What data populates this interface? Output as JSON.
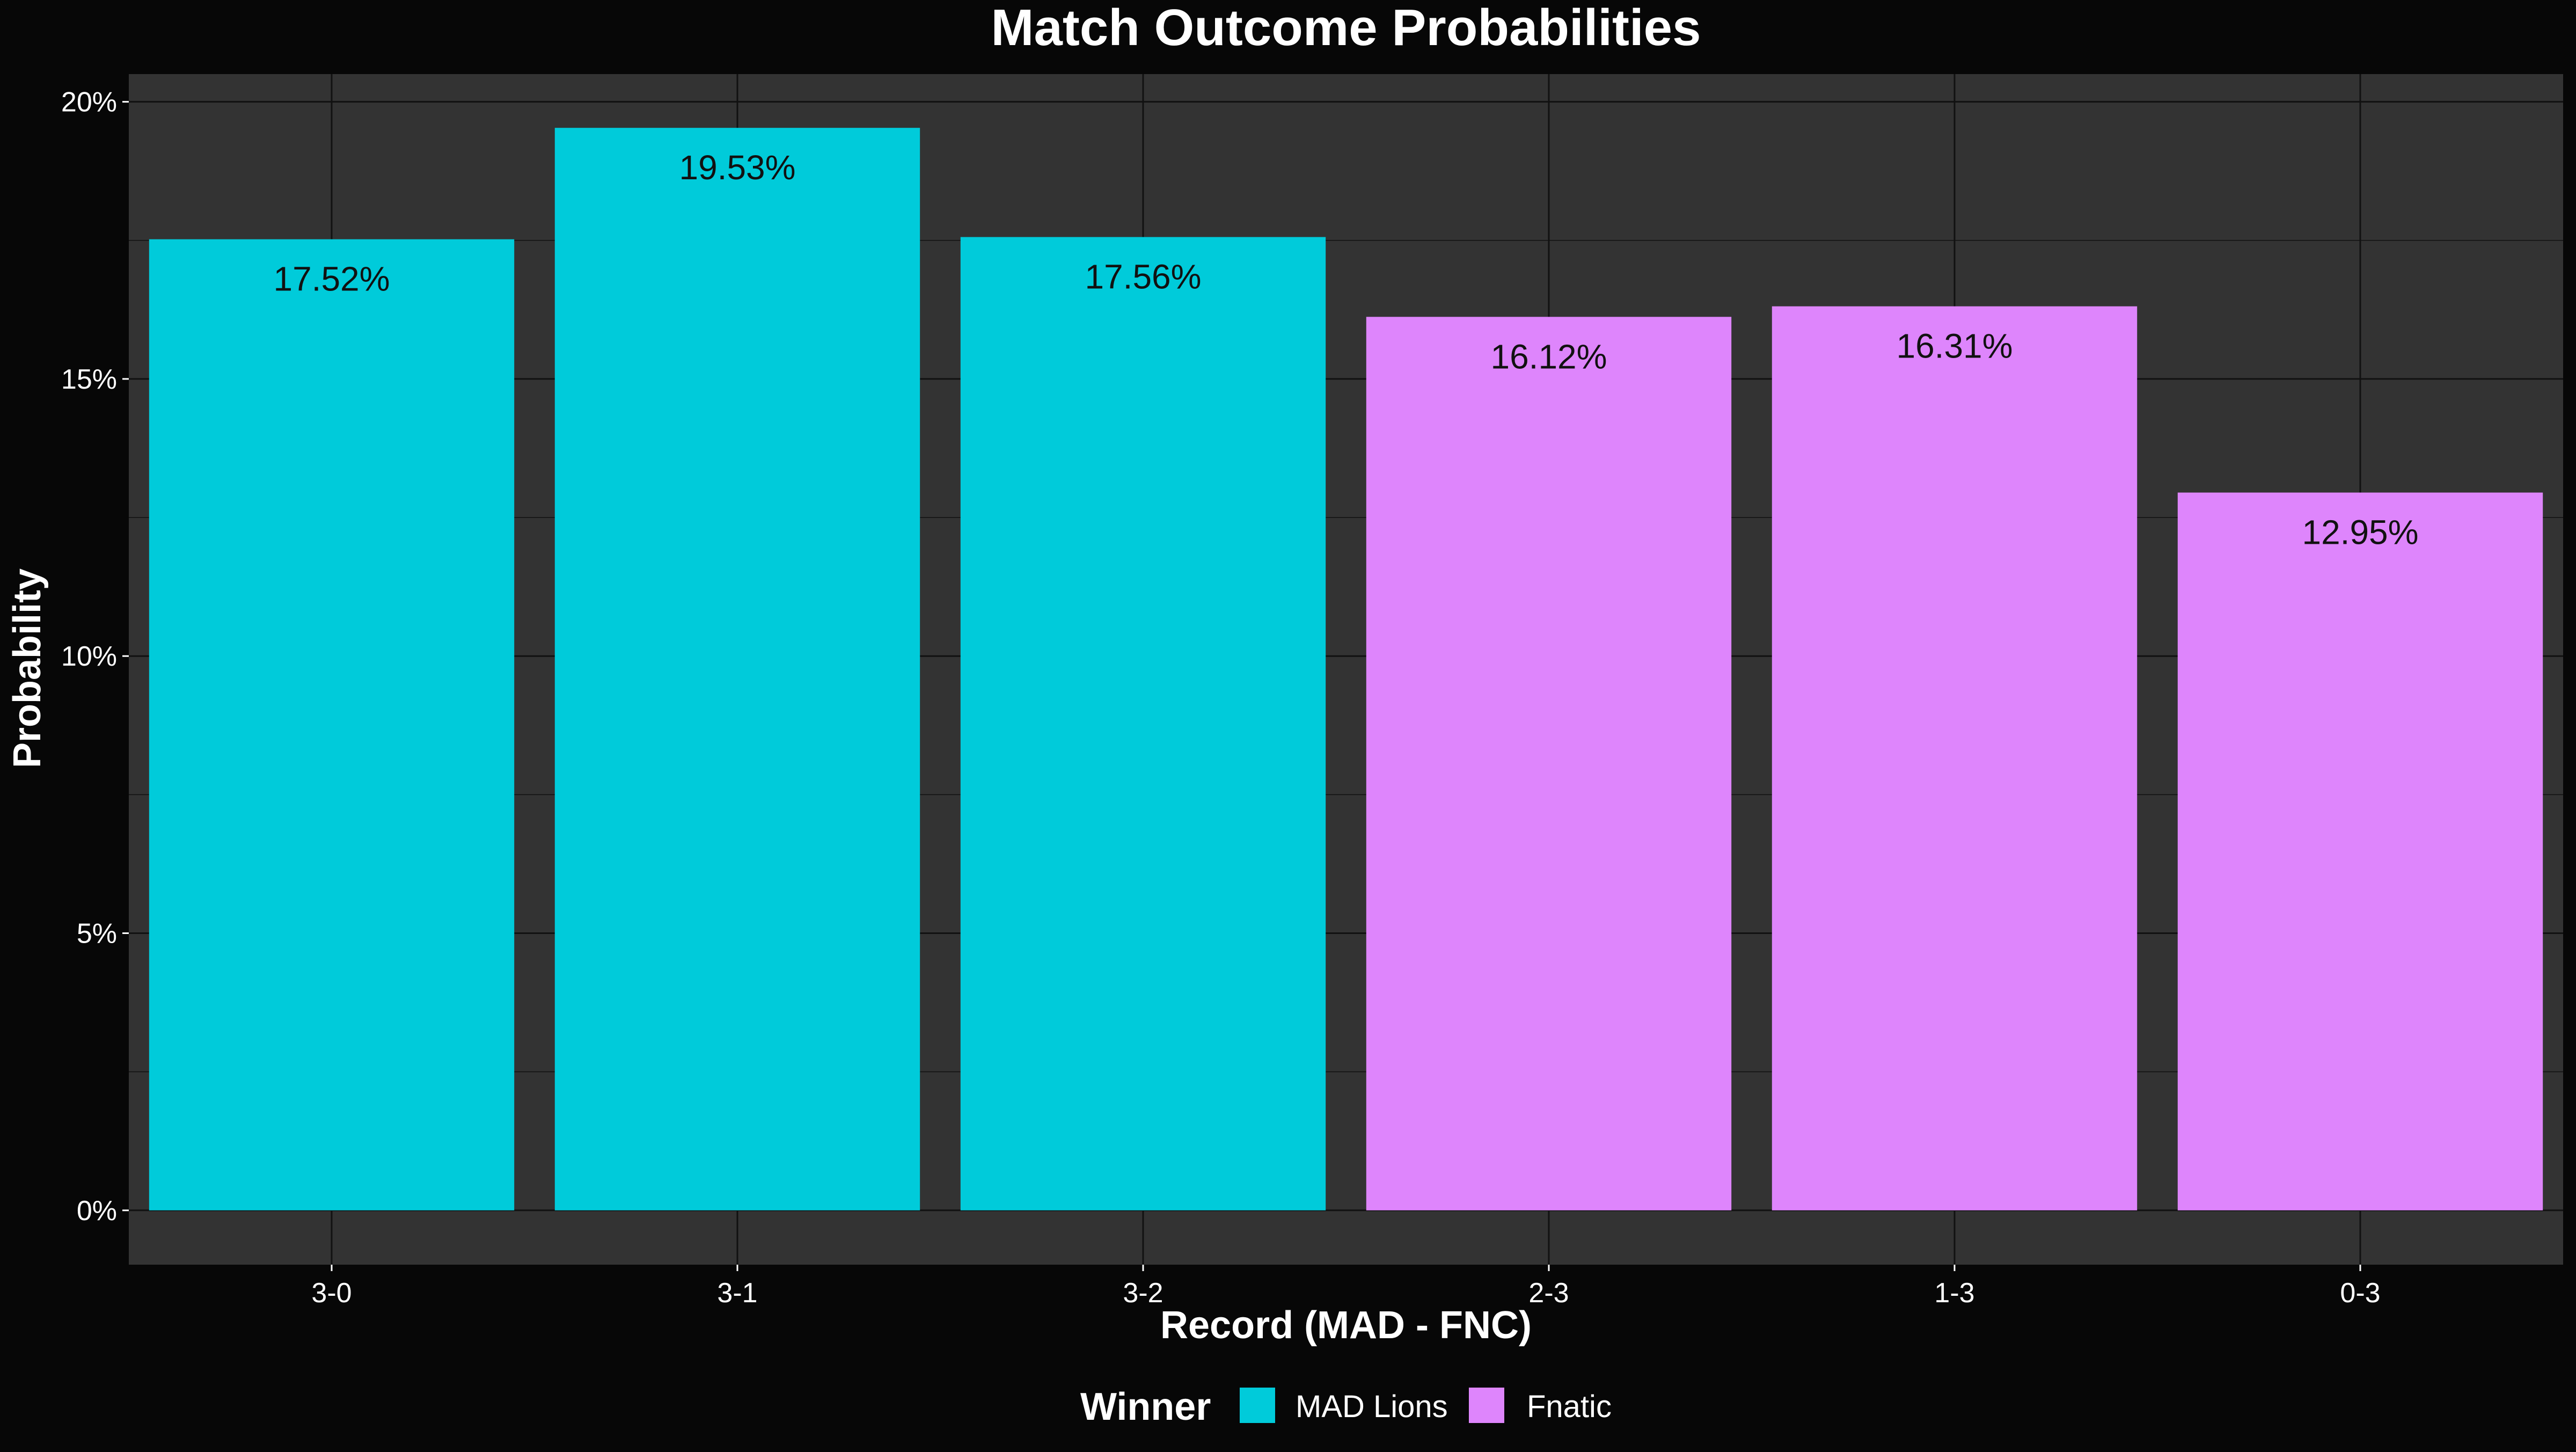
{
  "chart_data": {
    "type": "bar",
    "title": "Match Outcome Probabilities",
    "xlabel": "Record (MAD - FNC)",
    "ylabel": "Probability",
    "categories": [
      "3-0",
      "3-1",
      "3-2",
      "2-3",
      "1-3",
      "0-3"
    ],
    "values": [
      17.52,
      19.53,
      17.56,
      16.12,
      16.31,
      12.95
    ],
    "value_labels": [
      "17.52%",
      "19.53%",
      "17.56%",
      "16.12%",
      "16.31%",
      "12.95%"
    ],
    "winner": [
      "MAD Lions",
      "MAD Lions",
      "MAD Lions",
      "Fnatic",
      "Fnatic",
      "Fnatic"
    ],
    "y_ticks": [
      0,
      5,
      10,
      15,
      20
    ],
    "y_tick_labels": [
      "0%",
      "5%",
      "10%",
      "15%",
      "20%"
    ],
    "ylim": [
      -0.98,
      20.5
    ],
    "grid": true,
    "legend": {
      "title": "Winner",
      "position": "bottom",
      "entries": [
        {
          "name": "MAD Lions",
          "color": "#00CBDA"
        },
        {
          "name": "Fnatic",
          "color": "#DE85FC"
        }
      ]
    },
    "colors": {
      "background": "#070707",
      "panel": "#333333",
      "grid": "#111111",
      "text": "#FFFFFF",
      "bar_label": "#111111"
    }
  }
}
